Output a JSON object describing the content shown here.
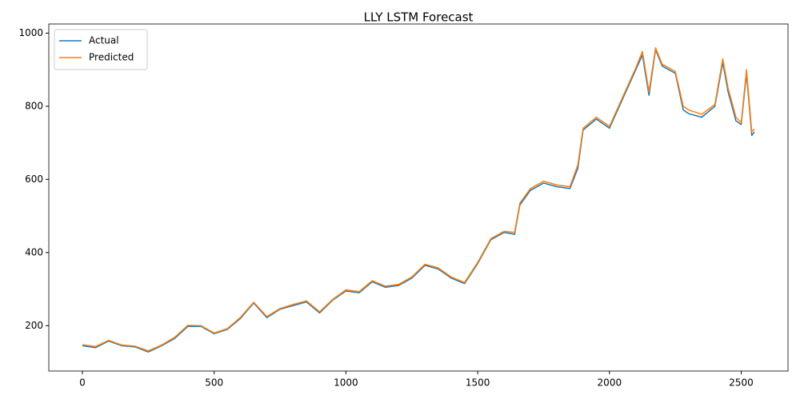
{
  "chart_data": {
    "type": "line",
    "title": "LLY LSTM Forecast",
    "x": [
      0,
      50,
      100,
      150,
      200,
      250,
      300,
      350,
      400,
      450,
      500,
      550,
      600,
      650,
      700,
      750,
      800,
      850,
      900,
      950,
      1000,
      1050,
      1100,
      1150,
      1200,
      1250,
      1300,
      1350,
      1400,
      1450,
      1500,
      1550,
      1600,
      1640,
      1660,
      1700,
      1750,
      1800,
      1850,
      1880,
      1900,
      1950,
      2000,
      2050,
      2100,
      2125,
      2150,
      2175,
      2200,
      2250,
      2280,
      2300,
      2350,
      2400,
      2430,
      2450,
      2480,
      2500,
      2520,
      2540,
      2550
    ],
    "series": [
      {
        "name": "Actual",
        "color": "#1f77b4",
        "values": [
          145,
          140,
          158,
          145,
          142,
          128,
          145,
          165,
          198,
          198,
          178,
          190,
          220,
          262,
          222,
          245,
          255,
          265,
          235,
          270,
          295,
          290,
          320,
          305,
          310,
          330,
          365,
          355,
          330,
          315,
          370,
          435,
          455,
          450,
          530,
          570,
          590,
          580,
          575,
          630,
          735,
          765,
          740,
          820,
          900,
          940,
          830,
          955,
          910,
          890,
          790,
          780,
          770,
          800,
          920,
          840,
          760,
          750,
          890,
          720,
          730
        ]
      },
      {
        "name": "Predicted",
        "color": "#ff7f0e",
        "values": [
          148,
          143,
          160,
          147,
          144,
          131,
          147,
          168,
          201,
          200,
          180,
          192,
          223,
          264,
          225,
          247,
          258,
          268,
          238,
          272,
          298,
          293,
          323,
          308,
          313,
          333,
          368,
          358,
          333,
          318,
          373,
          438,
          458,
          455,
          535,
          575,
          595,
          585,
          580,
          640,
          740,
          770,
          745,
          825,
          905,
          950,
          840,
          960,
          915,
          895,
          800,
          790,
          778,
          805,
          930,
          850,
          770,
          755,
          900,
          730,
          738
        ]
      }
    ],
    "xlim": [
      -127.5,
      2677.5
    ],
    "xticks": [
      0,
      500,
      1000,
      1500,
      2000,
      2500
    ],
    "ylim": [
      76,
      1025
    ],
    "yticks": [
      200,
      400,
      600,
      800,
      1000
    ],
    "legend": "upper left"
  }
}
